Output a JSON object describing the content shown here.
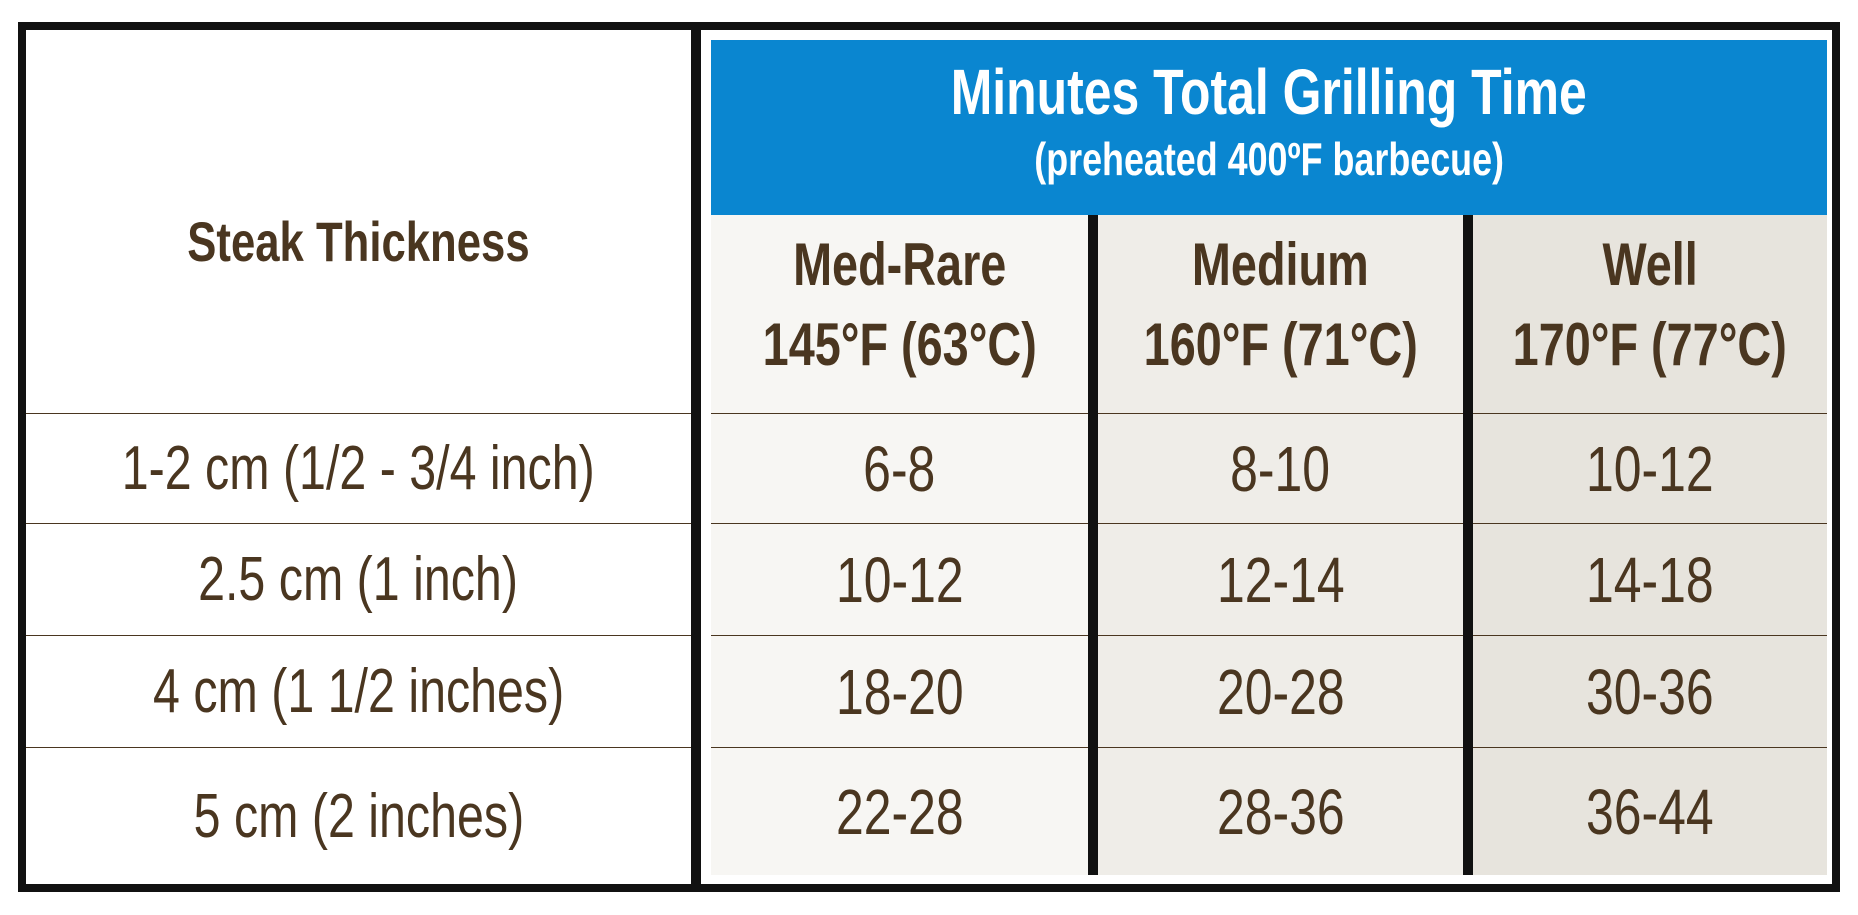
{
  "table": {
    "row_header": "Steak Thickness",
    "banner": {
      "title": "Minutes Total Grilling Time",
      "subtitle": "(preheated 400ºF barbecue)"
    },
    "columns": [
      {
        "name": "Med-Rare",
        "temp": "145°F (63°C)"
      },
      {
        "name": "Medium",
        "temp": "160°F (71°C)"
      },
      {
        "name": "Well",
        "temp": "170°F (77°C)"
      }
    ],
    "rows": [
      {
        "thickness": "1-2 cm (1/2 - 3/4 inch)",
        "values": [
          "6-8",
          "8-10",
          "10-12"
        ]
      },
      {
        "thickness": "2.5 cm (1 inch)",
        "values": [
          "10-12",
          "12-14",
          "14-18"
        ]
      },
      {
        "thickness": "4 cm (1 1/2 inches)",
        "values": [
          "18-20",
          "20-28",
          "30-36"
        ]
      },
      {
        "thickness": "5 cm (2 inches)",
        "values": [
          "22-28",
          "28-36",
          "36-44"
        ]
      }
    ]
  },
  "colors": {
    "banner": "#0a86d0",
    "text": "#4a3620",
    "border": "#111111",
    "col1_bg": "#f7f6f3",
    "col2_bg": "#efede8",
    "col3_bg": "#e7e4dd"
  }
}
